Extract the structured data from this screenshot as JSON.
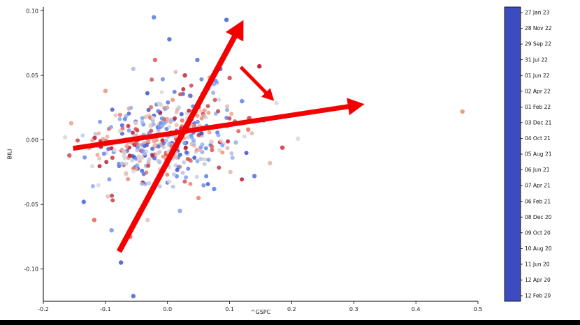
{
  "chart_data": {
    "type": "scatter",
    "title": "",
    "xlabel": "^GSPC",
    "ylabel": "BILI",
    "xlim": [
      -0.2,
      0.5
    ],
    "ylim": [
      -0.125,
      0.103
    ],
    "grid": false,
    "x_ticks": [
      {
        "v": -0.2,
        "label": "-0.2"
      },
      {
        "v": -0.1,
        "label": "-0.1"
      },
      {
        "v": 0.0,
        "label": "0.0"
      },
      {
        "v": 0.1,
        "label": "0.1"
      },
      {
        "v": 0.2,
        "label": "0.2"
      },
      {
        "v": 0.3,
        "label": "0.3"
      },
      {
        "v": 0.4,
        "label": "0.4"
      },
      {
        "v": 0.5,
        "label": "0.5"
      }
    ],
    "y_ticks": [
      {
        "v": 0.1,
        "label": "0.10"
      },
      {
        "v": 0.05,
        "label": "0.05"
      },
      {
        "v": 0.0,
        "label": "0.00"
      },
      {
        "v": -0.05,
        "label": "-0.05"
      },
      {
        "v": -0.1,
        "label": "-0.10"
      }
    ],
    "colormap": "coolwarm",
    "colormap_stops": [
      {
        "t": 0.0,
        "rgb": [
          59,
          76,
          192
        ]
      },
      {
        "t": 0.25,
        "rgb": [
          122,
          158,
          248
        ]
      },
      {
        "t": 0.5,
        "rgb": [
          221,
          220,
          219
        ]
      },
      {
        "t": 0.75,
        "rgb": [
          242,
          140,
          116
        ]
      },
      {
        "t": 1.0,
        "rgb": [
          180,
          4,
          38
        ]
      }
    ],
    "colorbar": {
      "position": "right",
      "tick_labels": [
        "27 Jan 23",
        "28 Nov 22",
        "29 Sep 22",
        "31 Jul 22",
        "01 Jun 22",
        "02 Apr 22",
        "01 Feb 22",
        "03 Dec 21",
        "04 Oct 21",
        "05 Aug 21",
        "06 Jun 21",
        "07 Apr 21",
        "06 Feb 21",
        "08 Dec 20",
        "09 Oct 20",
        "10 Aug 20",
        "11 Jun 20",
        "12 Apr 20",
        "12 Feb 20"
      ]
    },
    "marker": {
      "radius": 3,
      "opacity": 0.85
    },
    "arrow_color": "#f40000",
    "arrows": [
      {
        "x1": -0.078,
        "y1": -0.0865,
        "x2": 0.113,
        "y2": 0.0845,
        "width": 8
      },
      {
        "x1": -0.152,
        "y1": -0.0065,
        "x2": 0.3,
        "y2": 0.0265,
        "width": 7
      },
      {
        "x1": 0.118,
        "y1": 0.0565,
        "x2": 0.163,
        "y2": 0.0345,
        "width": 5
      }
    ],
    "points": [
      [
        0.475,
        0.022,
        0.72
      ],
      [
        -0.055,
        -0.121,
        0.12
      ],
      [
        -0.075,
        -0.095,
        0.08
      ],
      [
        0.095,
        0.093,
        0.1
      ],
      [
        -0.022,
        0.095,
        0.18
      ],
      [
        0.003,
        0.078,
        0.12
      ],
      [
        0.048,
        0.062,
        0.15
      ],
      [
        0.085,
        0.055,
        0.1
      ],
      [
        0.1,
        0.048,
        0.85
      ],
      [
        0.148,
        0.057,
        0.95
      ],
      [
        0.12,
        0.03,
        0.2
      ],
      [
        0.155,
        0.015,
        0.25
      ],
      [
        0.21,
        0.001,
        0.5
      ],
      [
        0.185,
        -0.006,
        0.88
      ],
      [
        0.165,
        -0.018,
        0.6
      ],
      [
        0.14,
        -0.028,
        0.15
      ],
      [
        -0.155,
        0.013,
        0.65
      ],
      [
        -0.165,
        0.002,
        0.5
      ],
      [
        -0.158,
        -0.012,
        0.85
      ],
      [
        -0.135,
        -0.048,
        0.12
      ],
      [
        -0.118,
        -0.062,
        0.8
      ],
      [
        -0.09,
        -0.07,
        0.25
      ],
      [
        -0.06,
        -0.075,
        0.8
      ],
      [
        -0.032,
        -0.062,
        0.55
      ],
      [
        0.02,
        -0.055,
        0.3
      ],
      [
        0.05,
        -0.045,
        0.75
      ],
      [
        0.075,
        -0.038,
        0.18
      ],
      [
        -0.02,
        0.062,
        0.82
      ],
      [
        -0.055,
        0.055,
        0.4
      ],
      [
        0.028,
        0.05,
        0.9
      ],
      [
        0.065,
        0.04,
        0.08
      ],
      [
        -0.1,
        0.038,
        0.7
      ],
      [
        0.11,
        -0.002,
        0.35
      ],
      [
        0.13,
        0.008,
        0.78
      ]
    ],
    "cluster": {
      "count": 430,
      "seed": 11,
      "mean": [
        -0.008,
        0.0
      ],
      "std": [
        0.055,
        0.017
      ],
      "corr": 0.3
    }
  },
  "window": {
    "bottom_bar_color": "#000000"
  }
}
